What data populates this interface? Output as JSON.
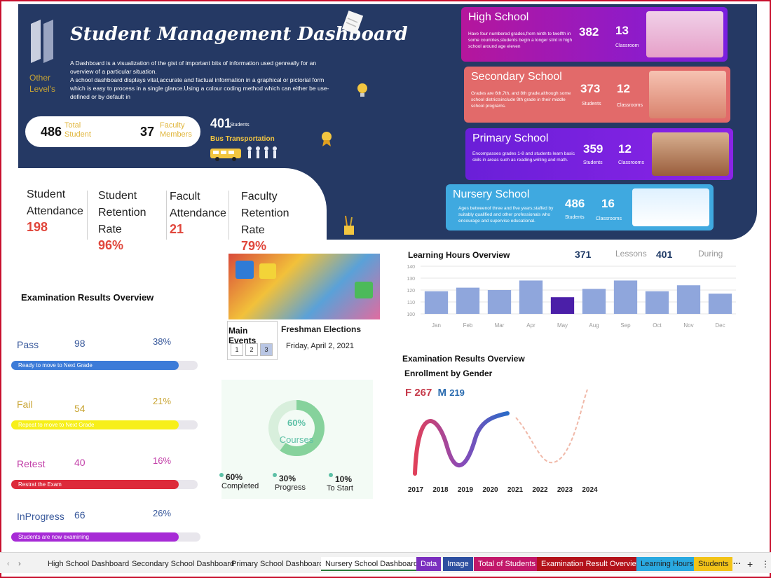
{
  "header": {
    "title": "Student Management Dashboard",
    "logo_text_line1": "Other",
    "logo_text_line2": "Level's",
    "description": "A Dashboard is a visualization of the gist of important bits of information used genreally for an overview of a particular situation.\nA school dashboard displays vital,accurate and factual information in a graphical or pictorial form which is easy to process in a single glance.Using a colour coding method which can either be use-defined or by default in",
    "total_students_value": "486",
    "total_students_label": "Total Student",
    "faculty_value": "37",
    "faculty_label": "Faculty Members",
    "bus_value": "401",
    "bus_sub": "Students",
    "bus_label": "Bus Transportation"
  },
  "kpis": [
    {
      "label": "Student Attendance",
      "value": "198"
    },
    {
      "label": "Student Retention Rate",
      "value": "96%"
    },
    {
      "label": "Facult Attendance",
      "value": "21"
    },
    {
      "label": "Faculty Retention Rate",
      "value": "79%"
    }
  ],
  "schools": [
    {
      "name": "High School",
      "desc": "Have four numbered grades,from ninth to twelfth in some countries,students begin a longer stint in high school around age eleven",
      "students": "382",
      "classrooms": "13",
      "students_label": "",
      "classrooms_label": "Classroom",
      "color": "#b5169c"
    },
    {
      "name": "Secondary School",
      "desc": "Grades are 6th,7th, and 8th grade,although some school districtsinclude 9th grade in their middle school programs.",
      "students": "373",
      "classrooms": "12",
      "students_label": "Students",
      "classrooms_label": "Classrooms",
      "color": "#e26a6a"
    },
    {
      "name": "Primary School",
      "desc": "Encompasses grades 1-8 and students learn basic skils in areas such as reading,writing and math.",
      "students": "359",
      "classrooms": "12",
      "students_label": "Students",
      "classrooms_label": "Classrooms",
      "color": "#7a1ee0"
    },
    {
      "name": "Nursery School",
      "desc": "Ages betweenof three and five years,staffed by suitably qualified and other professionals who encourage and supervise educational.",
      "students": "486",
      "classrooms": "16",
      "students_label": "Students",
      "classrooms_label": "Classrooms",
      "color": "#3fa9e0"
    }
  ],
  "exam_results": {
    "title": "Examination Results Overview",
    "items": [
      {
        "name": "Pass",
        "count": "98",
        "pct": "38%",
        "fill": 0.38,
        "bar_text": "Ready to move to Next Grade",
        "name_color": "#3a5a9c",
        "count_color": "#3a5a9c",
        "pct_color": "#3a5a9c",
        "bar_color": "#3c7bd8"
      },
      {
        "name": "Fail",
        "count": "54",
        "pct": "21%",
        "fill": 0.21,
        "bar_text": "Repeat to move to Next Grade",
        "name_color": "#c9a534",
        "count_color": "#c9a534",
        "pct_color": "#c9a534",
        "bar_color": "#f7ef1a"
      },
      {
        "name": "Retest",
        "count": "40",
        "pct": "16%",
        "fill": 0.16,
        "bar_text": "Restrat the Exam",
        "name_color": "#c23fa8",
        "count_color": "#c23fa8",
        "pct_color": "#c23fa8",
        "bar_color": "#dd2a3a"
      },
      {
        "name": "InProgress",
        "count": "66",
        "pct": "26%",
        "fill": 0.26,
        "bar_text": "Students are now examining",
        "name_color": "#3a5a9c",
        "count_color": "#3a5a9c",
        "pct_color": "#3a5a9c",
        "bar_color": "#a72bd6"
      }
    ]
  },
  "events": {
    "title": "Main Events",
    "pages": [
      "1",
      "2",
      "3"
    ],
    "active_page": 2,
    "event_name": "Freshman Elections",
    "event_date": "Friday, April 2, 2021"
  },
  "courses": {
    "center_pct": "60%",
    "center_label": "Courses",
    "legend": [
      {
        "pct": "60%",
        "label": "Completed"
      },
      {
        "pct": "30%",
        "label": "Progress"
      },
      {
        "pct": "10%",
        "label": "To Start"
      }
    ]
  },
  "learning_hours": {
    "title": "Learning Hours Overview",
    "lessons_value": "371",
    "lessons_label": "Lessons",
    "during_value": "401",
    "during_label": "During"
  },
  "exam_overview2": {
    "title": "Examination Results Overview",
    "subtitle": "Enrollment by Gender",
    "f_label": "F",
    "f_value": "267",
    "m_label": "M",
    "m_value": "219"
  },
  "chart_data": [
    {
      "type": "bar",
      "title": "Learning Hours Overview",
      "categories": [
        "Jan",
        "Feb",
        "Mar",
        "Apr",
        "May",
        "Aug",
        "Sep",
        "Oct",
        "Nov",
        "Dec"
      ],
      "values": [
        119,
        122,
        120,
        128,
        114,
        121,
        128,
        119,
        124,
        117
      ],
      "ylim": [
        100,
        140
      ],
      "yticks": [
        100,
        110,
        120,
        130,
        140
      ],
      "highlight_index": 4,
      "colors": {
        "bar": "#8fa6dc",
        "highlight": "#4b1fa8"
      }
    },
    {
      "type": "line",
      "title": "Enrollment by Gender",
      "x": [
        "2017",
        "2018",
        "2019",
        "2020",
        "2021",
        "2022",
        "2023",
        "2024"
      ]
    }
  ],
  "tabs": [
    {
      "label": "High School Dashboard",
      "bg": "",
      "color": "#222"
    },
    {
      "label": "Secondary School Dashboard",
      "bg": "",
      "color": "#222"
    },
    {
      "label": "Primary School Dashboard",
      "bg": "",
      "color": "#222"
    },
    {
      "label": "Nursery  School Dashboard",
      "bg": "#ffffff",
      "color": "#222"
    },
    {
      "label": "Data",
      "bg": "#7b2fbf",
      "color": "#fff"
    },
    {
      "label": "Image",
      "bg": "#2e4fa0",
      "color": "#fff"
    },
    {
      "label": "Total of Students",
      "bg": "#c2186a",
      "color": "#fff"
    },
    {
      "label": "Examination Result Overview",
      "bg": "#b3121a",
      "color": "#fff"
    },
    {
      "label": "Learning Hours",
      "bg": "#2aa9e0",
      "color": "#222"
    },
    {
      "label": "Students",
      "bg": "#f2c318",
      "color": "#222"
    }
  ]
}
